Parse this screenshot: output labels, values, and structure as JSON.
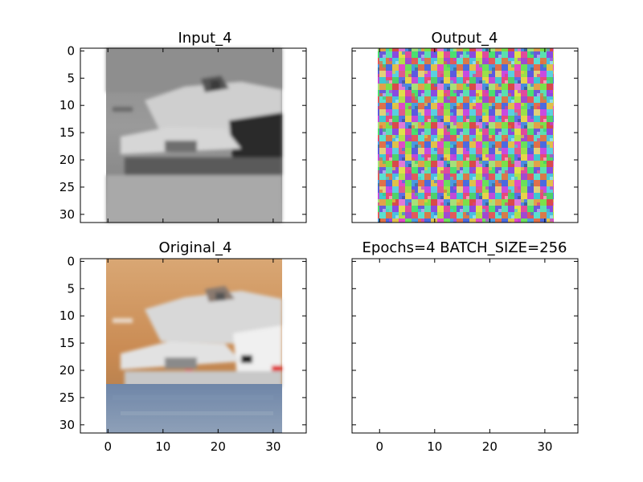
{
  "chart_data": [
    {
      "type": "image",
      "title": "Input_4",
      "x_ticks": [
        "0",
        "10",
        "20",
        "30"
      ],
      "y_ticks": [
        "0",
        "5",
        "10",
        "15",
        "20",
        "25",
        "30"
      ],
      "x_tick_labels_visible": false,
      "xlim": [
        -5,
        36
      ],
      "ylim": [
        31.5,
        -0.5
      ],
      "image_extent": [
        -0.5,
        31.5,
        31.5,
        -0.5
      ],
      "content": "grayscale photo of a ship"
    },
    {
      "type": "image",
      "title": "Output_4",
      "x_ticks": [
        "0",
        "10",
        "20",
        "30"
      ],
      "y_ticks": [
        "0",
        "5",
        "10",
        "15",
        "20",
        "25",
        "30"
      ],
      "x_tick_labels_visible": false,
      "y_tick_labels_visible": false,
      "xlim": [
        -5,
        36
      ],
      "ylim": [
        31.5,
        -0.5
      ],
      "image_extent": [
        -0.5,
        31.5,
        31.5,
        -0.5
      ],
      "content": "random colored noise"
    },
    {
      "type": "image",
      "title": "Original_4",
      "x_ticks": [
        "0",
        "10",
        "20",
        "30"
      ],
      "y_ticks": [
        "0",
        "5",
        "10",
        "15",
        "20",
        "25",
        "30"
      ],
      "xlim": [
        -5,
        36
      ],
      "ylim": [
        31.5,
        -0.5
      ],
      "image_extent": [
        -0.5,
        31.5,
        31.5,
        -0.5
      ],
      "content": "color photo of a ship on water with orange sky"
    },
    {
      "type": "empty",
      "title": "Epochs=4 BATCH_SIZE=256",
      "x_ticks": [
        "0",
        "10",
        "20",
        "30"
      ],
      "y_ticks": [
        "0",
        "5",
        "10",
        "15",
        "20",
        "25",
        "30"
      ],
      "y_tick_labels_visible": false,
      "xlim": [
        -5,
        36
      ],
      "ylim": [
        31.5,
        -0.5
      ]
    }
  ]
}
